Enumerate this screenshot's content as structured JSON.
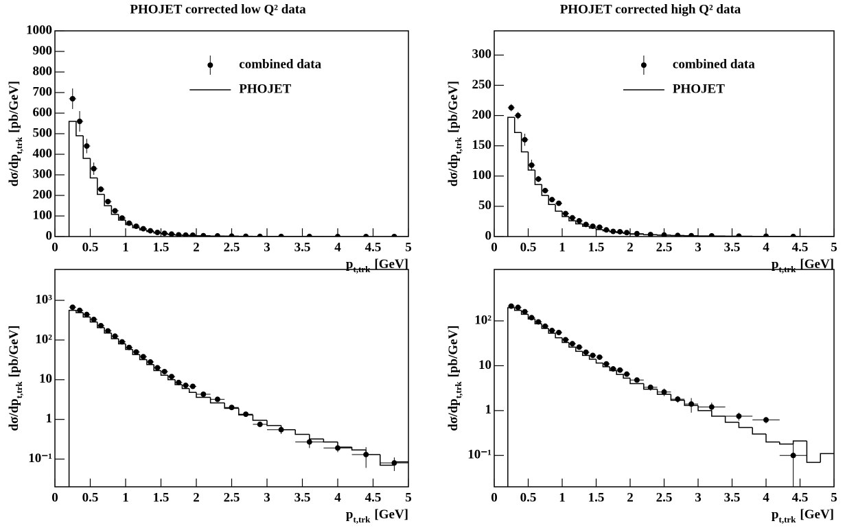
{
  "chart_data": [
    {
      "type": "scatter",
      "title": "PHOJET corrected low Q² data",
      "xlabel": {
        "text": "p",
        "sub": "t,trk",
        "unit": "[GeV]"
      },
      "ylabel": {
        "text": "dσ/dp",
        "sub": "t,trk",
        "unit": "[pb/GeV]"
      },
      "xlim": [
        0,
        5
      ],
      "xticks": [
        0,
        0.5,
        1,
        1.5,
        2,
        2.5,
        3,
        3.5,
        4,
        4.5,
        5
      ],
      "panels": [
        {
          "log": false,
          "ylim": [
            0,
            1000
          ],
          "yticks": [
            0,
            100,
            200,
            300,
            400,
            500,
            600,
            700,
            800,
            900,
            1000
          ],
          "legend": "upper right"
        },
        {
          "log": true,
          "ylim": [
            0.02,
            6000
          ],
          "yticks": [
            {
              "value": 0.1,
              "label": "10⁻¹"
            },
            1,
            10,
            {
              "value": 100,
              "label": "10²"
            },
            {
              "value": 1000,
              "label": "10³"
            }
          ]
        }
      ],
      "series": [
        {
          "name": "combined data",
          "color": "#000000",
          "x": [
            0.25,
            0.35,
            0.45,
            0.55,
            0.65,
            0.75,
            0.85,
            0.95,
            1.05,
            1.15,
            1.25,
            1.35,
            1.45,
            1.55,
            1.65,
            1.75,
            1.85,
            1.95,
            2.1,
            2.3,
            2.5,
            2.7,
            2.9,
            3.2,
            3.6,
            4.0,
            4.4,
            4.8
          ],
          "xerr": [
            0.05,
            0.05,
            0.05,
            0.05,
            0.05,
            0.05,
            0.05,
            0.05,
            0.05,
            0.05,
            0.05,
            0.05,
            0.05,
            0.05,
            0.05,
            0.05,
            0.05,
            0.05,
            0.1,
            0.1,
            0.1,
            0.1,
            0.1,
            0.2,
            0.2,
            0.2,
            0.2,
            0.2
          ],
          "values": [
            670,
            560,
            440,
            330,
            230,
            170,
            125,
            90,
            65,
            50,
            38,
            28,
            20,
            16,
            12,
            8.5,
            7.2,
            6.8,
            4.3,
            3.2,
            2.0,
            1.35,
            0.75,
            0.55,
            0.27,
            0.19,
            0.13,
            0.08
          ],
          "errors": [
            50,
            50,
            35,
            30,
            15,
            10,
            8,
            6,
            4,
            3,
            2.5,
            2,
            1.5,
            1.2,
            0.9,
            0.7,
            0.6,
            0.6,
            0.4,
            0.3,
            0.2,
            0.15,
            0.1,
            0.12,
            0.08,
            0.04,
            0.07,
            0.03
          ]
        },
        {
          "name": "PHOJET",
          "type": "step",
          "color": "#000000",
          "bins": [
            0.2,
            0.3,
            0.4,
            0.5,
            0.6,
            0.7,
            0.8,
            0.9,
            1.0,
            1.1,
            1.2,
            1.3,
            1.4,
            1.5,
            1.6,
            1.7,
            1.8,
            1.9,
            2.0,
            2.2,
            2.4,
            2.6,
            2.8,
            3.0,
            3.2,
            3.4,
            3.6,
            3.8,
            4.0,
            4.2,
            4.4,
            4.6,
            4.8,
            5.0
          ],
          "values": [
            560,
            490,
            380,
            285,
            205,
            150,
            108,
            80,
            58,
            43,
            32,
            24,
            17,
            13,
            10,
            7.5,
            6,
            4.8,
            3.6,
            2.6,
            1.9,
            1.3,
            0.95,
            0.7,
            0.55,
            0.42,
            0.32,
            0.27,
            0.2,
            0.17,
            0.13,
            0.07,
            0.085
          ]
        }
      ]
    },
    {
      "type": "scatter",
      "title": "PHOJET corrected high Q² data",
      "xlabel": {
        "text": "p",
        "sub": "t,trk",
        "unit": "[GeV]"
      },
      "ylabel": {
        "text": "dσ/dp",
        "sub": "t,trk",
        "unit": "[pb/GeV]"
      },
      "xlim": [
        0,
        5
      ],
      "xticks": [
        0,
        0.5,
        1,
        1.5,
        2,
        2.5,
        3,
        3.5,
        4,
        4.5,
        5
      ],
      "panels": [
        {
          "log": false,
          "ylim": [
            0,
            340
          ],
          "yticks": [
            0,
            50,
            100,
            150,
            200,
            250,
            300
          ],
          "legend": "upper right"
        },
        {
          "log": true,
          "ylim": [
            0.02,
            1400
          ],
          "yticks": [
            {
              "value": 0.1,
              "label": "10⁻¹"
            },
            1,
            10,
            {
              "value": 100,
              "label": "10²"
            }
          ]
        }
      ],
      "series": [
        {
          "name": "combined data",
          "color": "#000000",
          "x": [
            0.25,
            0.35,
            0.45,
            0.55,
            0.65,
            0.75,
            0.85,
            0.95,
            1.05,
            1.15,
            1.25,
            1.35,
            1.45,
            1.55,
            1.65,
            1.75,
            1.85,
            1.95,
            2.1,
            2.3,
            2.5,
            2.7,
            2.9,
            3.2,
            3.6,
            4.0,
            4.4
          ],
          "xerr": [
            0.05,
            0.05,
            0.05,
            0.05,
            0.05,
            0.05,
            0.05,
            0.05,
            0.05,
            0.05,
            0.05,
            0.05,
            0.05,
            0.05,
            0.05,
            0.05,
            0.05,
            0.05,
            0.1,
            0.1,
            0.1,
            0.1,
            0.1,
            0.2,
            0.2,
            0.2,
            0.2
          ],
          "values": [
            213,
            200,
            160,
            118,
            95,
            76,
            61,
            55,
            38,
            31,
            26,
            20,
            17,
            15.5,
            11,
            8.5,
            8,
            6.5,
            4.8,
            3.3,
            2.6,
            1.8,
            1.4,
            1.2,
            0.75,
            0.62,
            0.1
          ],
          "errors": [
            6,
            6,
            10,
            9,
            5,
            4,
            3,
            2.5,
            2,
            1.6,
            1.3,
            1,
            0.9,
            0.8,
            0.6,
            0.5,
            0.5,
            0.4,
            0.3,
            0.5,
            0.5,
            0.3,
            0.5,
            0.3,
            0.15,
            0.1,
            0.09
          ]
        },
        {
          "name": "PHOJET",
          "type": "step",
          "color": "#000000",
          "bins": [
            0.2,
            0.3,
            0.4,
            0.5,
            0.6,
            0.7,
            0.8,
            0.9,
            1.0,
            1.1,
            1.2,
            1.3,
            1.4,
            1.5,
            1.6,
            1.7,
            1.8,
            1.9,
            2.0,
            2.2,
            2.4,
            2.6,
            2.8,
            3.0,
            3.2,
            3.4,
            3.6,
            3.8,
            4.0,
            4.2,
            4.4,
            4.6,
            4.8,
            5.0
          ],
          "values": [
            197,
            172,
            140,
            110,
            86,
            68,
            53,
            42,
            33,
            26,
            21,
            17,
            14,
            11.5,
            9.5,
            7.8,
            6.4,
            5.3,
            4.0,
            3.0,
            2.3,
            1.7,
            1.3,
            1.0,
            0.75,
            0.55,
            0.42,
            0.3,
            0.2,
            0.18,
            0.21,
            0.07,
            0.11
          ]
        }
      ]
    }
  ]
}
